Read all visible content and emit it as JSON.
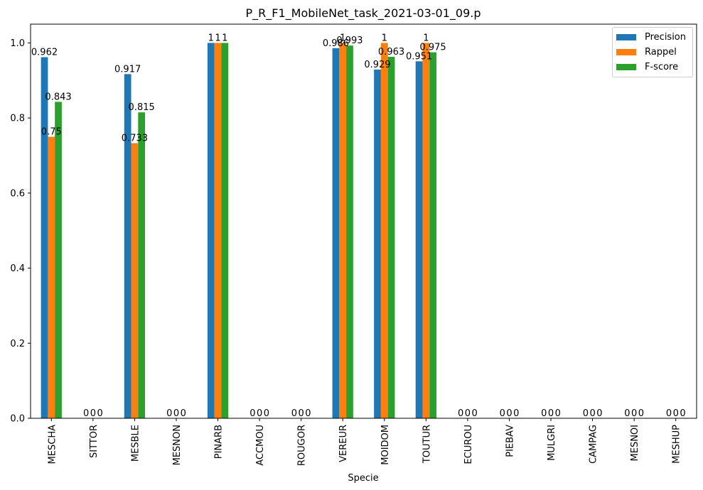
{
  "chart_data": {
    "type": "bar",
    "title": "P_R_F1_MobileNet_task_2021-03-01_09.p",
    "xlabel": "Specie",
    "ylabel": "",
    "ylim": [
      0,
      1.05
    ],
    "yticks": [
      "0.0",
      "0.2",
      "0.4",
      "0.6",
      "0.8",
      "1.0"
    ],
    "categories": [
      "MESCHA",
      "SITTOR",
      "MESBLE",
      "MESNON",
      "PINARB",
      "ACCMOU",
      "ROUGOR",
      "VEREUR",
      "MOIDOM",
      "TOUTUR",
      "ECUROU",
      "PIEBAV",
      "MULGRI",
      "CAMPAG",
      "MESNOI",
      "MESHUP"
    ],
    "series": [
      {
        "name": "Precision",
        "color": "#1f77b4",
        "values": [
          0.962,
          0,
          0.917,
          0,
          1,
          0,
          0,
          0.986,
          0.929,
          0.951,
          0,
          0,
          0,
          0,
          0,
          0
        ],
        "labels": [
          "0.962",
          "0",
          "0.917",
          "0",
          "1",
          "0",
          "0",
          "0.986",
          "0.929",
          "0.951",
          "0",
          "0",
          "0",
          "0",
          "0",
          "0"
        ]
      },
      {
        "name": "Rappel",
        "color": "#ff7f0e",
        "values": [
          0.75,
          0,
          0.733,
          0,
          1,
          0,
          0,
          1,
          1,
          1,
          0,
          0,
          0,
          0,
          0,
          0
        ],
        "labels": [
          "0.75",
          "0",
          "0.733",
          "0",
          "1",
          "0",
          "0",
          "1",
          "1",
          "1",
          "0",
          "0",
          "0",
          "0",
          "0",
          "0"
        ]
      },
      {
        "name": "F-score",
        "color": "#2ca02c",
        "values": [
          0.843,
          0,
          0.815,
          0,
          1,
          0,
          0,
          0.993,
          0.963,
          0.975,
          0,
          0,
          0,
          0,
          0,
          0
        ],
        "labels": [
          "0.843",
          "0",
          "0.815",
          "0",
          "1",
          "0",
          "0",
          "0.993",
          "0.963",
          "0.975",
          "0",
          "0",
          "0",
          "0",
          "0",
          "0"
        ]
      }
    ],
    "grid": false,
    "legend_position": "top-right"
  }
}
